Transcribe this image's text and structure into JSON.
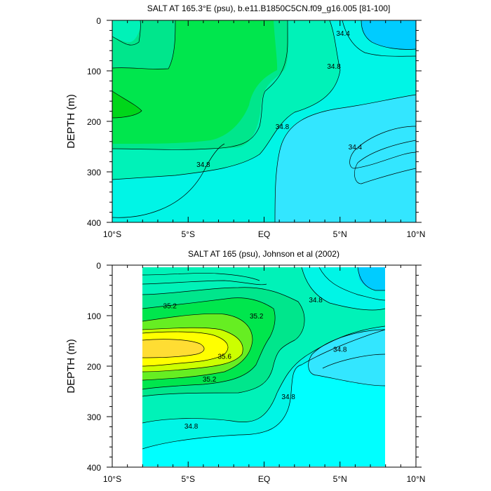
{
  "chart_data": [
    {
      "type": "contour",
      "title": "SALT AT 165.3°E (psu), b.e11.B1850C5CN.f09_g16.005 [81-100]",
      "ylabel": "DEPTH (m)",
      "xlabel": "",
      "xlim": [
        -10,
        10
      ],
      "ylim": [
        400,
        0
      ],
      "x_ticks": [
        {
          "value": -10,
          "label": "10°S"
        },
        {
          "value": -5,
          "label": "5°S"
        },
        {
          "value": 0,
          "label": "EQ"
        },
        {
          "value": 5,
          "label": "5°N"
        },
        {
          "value": 10,
          "label": "10°N"
        }
      ],
      "y_ticks": [
        {
          "value": 0,
          "label": "0"
        },
        {
          "value": 100,
          "label": "100"
        },
        {
          "value": 200,
          "label": "200"
        },
        {
          "value": 300,
          "label": "300"
        },
        {
          "value": 400,
          "label": "400"
        }
      ],
      "contour_labels": [
        {
          "x": 5.2,
          "y": 25,
          "text": "34.4"
        },
        {
          "x": 4.6,
          "y": 90,
          "text": "34.8"
        },
        {
          "x": 1.2,
          "y": 210,
          "text": "34.8"
        },
        {
          "x": -4.0,
          "y": 285,
          "text": "34.8"
        },
        {
          "x": 6.0,
          "y": 250,
          "text": "34.4"
        }
      ],
      "fill_colors": {
        "lowest": "#00ffff",
        "low": "#33e6ff",
        "low_mid": "#00f5e6",
        "mid": "#00f2b8",
        "mid_high": "#00e68c",
        "high": "#00e64d",
        "highest": "#00d61a",
        "top_right": "#00ccff"
      }
    },
    {
      "type": "contour",
      "title": "SALT AT 165 (psu), Johnson et al (2002)",
      "ylabel": "DEPTH (m)",
      "xlabel": "",
      "xlim": [
        -10,
        10
      ],
      "ylim": [
        400,
        0
      ],
      "data_xlim": [
        -8,
        8
      ],
      "data_ylim": [
        10,
        400
      ],
      "x_ticks": [
        {
          "value": -10,
          "label": "10°S"
        },
        {
          "value": -5,
          "label": "5°S"
        },
        {
          "value": 0,
          "label": "EQ"
        },
        {
          "value": 5,
          "label": "5°N"
        },
        {
          "value": 10,
          "label": "10°N"
        }
      ],
      "y_ticks": [
        {
          "value": 0,
          "label": "0"
        },
        {
          "value": 100,
          "label": "100"
        },
        {
          "value": 200,
          "label": "200"
        },
        {
          "value": 300,
          "label": "300"
        },
        {
          "value": 400,
          "label": "400"
        }
      ],
      "contour_labels": [
        {
          "x": -6.2,
          "y": 80,
          "text": "35.2"
        },
        {
          "x": -0.5,
          "y": 100,
          "text": "35.2"
        },
        {
          "x": 3.4,
          "y": 68,
          "text": "34.8"
        },
        {
          "x": 5.0,
          "y": 166,
          "text": "34.8"
        },
        {
          "x": -2.6,
          "y": 180,
          "text": "35.6"
        },
        {
          "x": -3.6,
          "y": 225,
          "text": "35.2"
        },
        {
          "x": 1.6,
          "y": 260,
          "text": "34.8"
        },
        {
          "x": -4.8,
          "y": 318,
          "text": "34.8"
        }
      ],
      "fill_colors": {
        "lowest": "#00ffff",
        "low": "#33e6ff",
        "low_mid": "#00f5e6",
        "mid": "#00f2b8",
        "mid_high": "#00e68c",
        "high": "#00e64d",
        "higher": "#66ee22",
        "warm": "#ccff00",
        "hot": "#ffff00",
        "core": "#ffdd33",
        "top_right": "#00ccff"
      }
    }
  ]
}
